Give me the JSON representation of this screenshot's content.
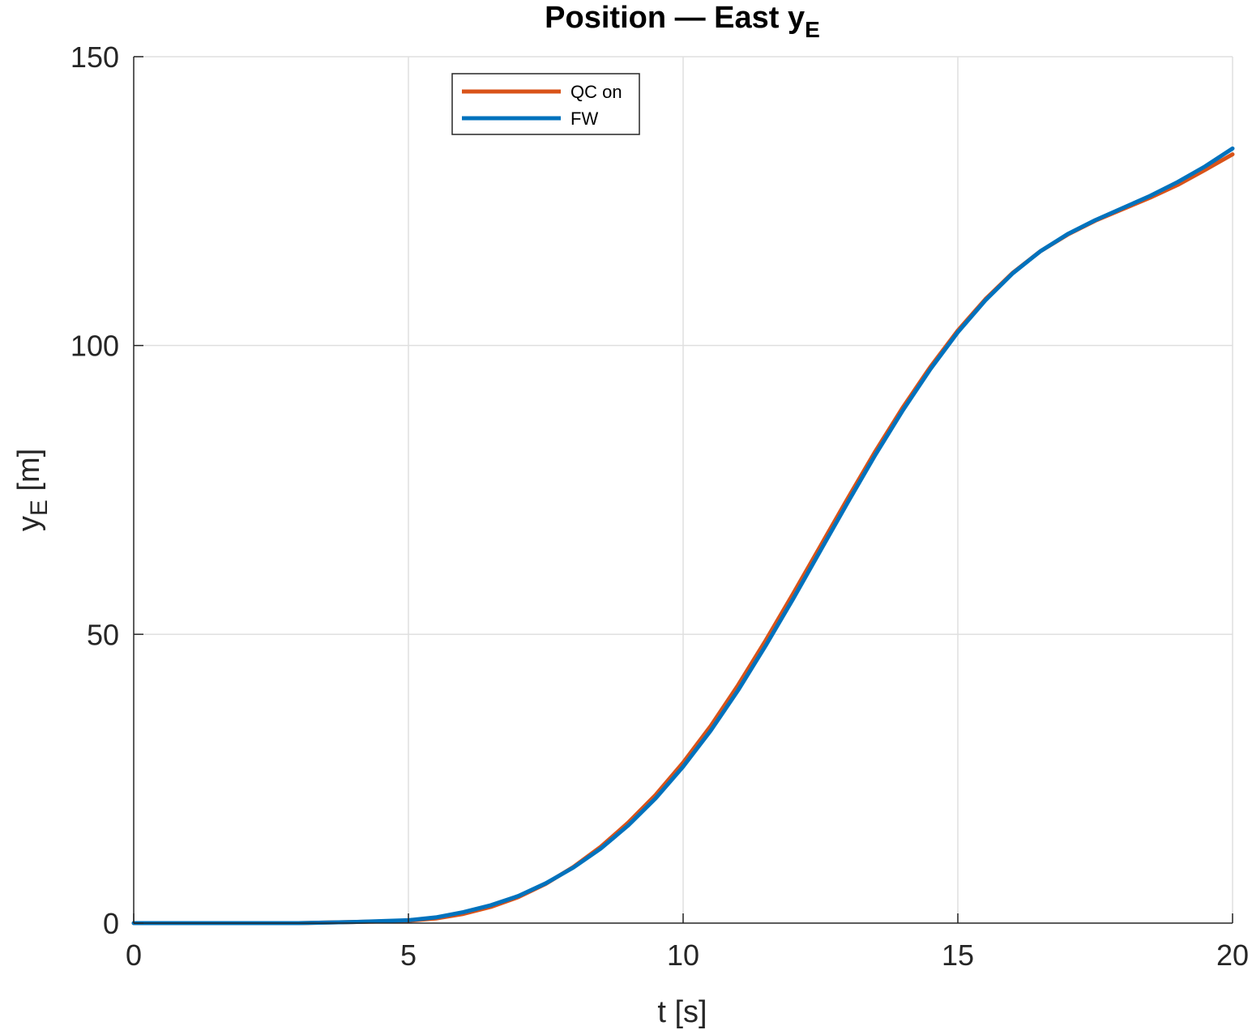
{
  "chart_data": {
    "type": "line",
    "title": "Position — East y",
    "title_subscript": "E",
    "xlabel": "t [s]",
    "ylabel": "y",
    "ylabel_subscript": "E",
    "ylabel_unit": "[m]",
    "xlim": [
      0,
      20
    ],
    "ylim": [
      0,
      150
    ],
    "xticks": [
      0,
      5,
      10,
      15,
      20
    ],
    "yticks": [
      0,
      50,
      100,
      150
    ],
    "xtick_labels": [
      "0",
      "5",
      "10",
      "15",
      "20"
    ],
    "ytick_labels": [
      "0",
      "50",
      "100",
      "150"
    ],
    "grid": true,
    "legend_position": "top-center",
    "series": [
      {
        "name": "QC on",
        "color": "#D95319",
        "x": [
          0,
          1,
          2,
          3,
          4,
          5,
          5.5,
          6,
          6.5,
          7,
          7.5,
          8,
          8.5,
          9,
          9.5,
          10,
          10.5,
          11,
          11.5,
          12,
          12.5,
          13,
          13.5,
          14,
          14.5,
          15,
          15.5,
          16,
          16.5,
          17,
          17.5,
          18,
          18.5,
          19,
          19.5,
          20
        ],
        "values": [
          0,
          0,
          0,
          0,
          0.2,
          0.4,
          0.8,
          1.6,
          2.8,
          4.5,
          6.8,
          9.7,
          13.2,
          17.4,
          22.2,
          27.8,
          34.1,
          41.2,
          48.9,
          57.0,
          65.3,
          73.6,
          81.7,
          89.3,
          96.3,
          102.6,
          108.0,
          112.6,
          116.3,
          119.2,
          121.6,
          123.6,
          125.6,
          127.8,
          130.4,
          133.1
        ]
      },
      {
        "name": "FW",
        "color": "#0072BD",
        "x": [
          0,
          1,
          2,
          3,
          4,
          5,
          5.5,
          6,
          6.5,
          7,
          7.5,
          8,
          8.5,
          9,
          9.5,
          10,
          10.5,
          11,
          11.5,
          12,
          12.5,
          13,
          13.5,
          14,
          14.5,
          15,
          15.5,
          16,
          16.5,
          17,
          17.5,
          18,
          18.5,
          19,
          19.5,
          20
        ],
        "values": [
          0,
          0,
          0,
          0,
          0.2,
          0.5,
          1.0,
          1.9,
          3.1,
          4.7,
          6.9,
          9.6,
          12.9,
          16.9,
          21.6,
          27.1,
          33.3,
          40.3,
          48.0,
          56.1,
          64.5,
          72.9,
          81.1,
          88.8,
          95.9,
          102.3,
          107.8,
          112.5,
          116.3,
          119.3,
          121.7,
          123.8,
          125.9,
          128.3,
          131.0,
          134.1
        ]
      }
    ]
  }
}
